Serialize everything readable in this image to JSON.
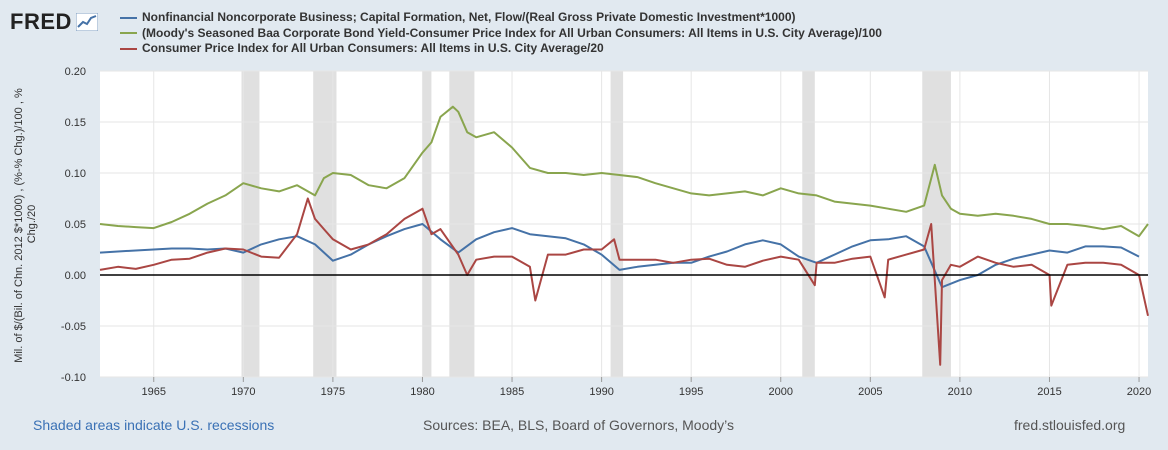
{
  "logo": {
    "text": "FRED"
  },
  "chart_data": {
    "type": "line",
    "title": "",
    "ylabel": "Mil. of $/(Bil. of Chn. 2012 $*1000) , (%-% Chg.)/100 , % Chg./20",
    "xlabel": "",
    "ylim": [
      -0.1,
      0.2
    ],
    "xlim": [
      1962.0,
      2020.5
    ],
    "y_ticks": [
      "0.20",
      "0.15",
      "0.10",
      "0.05",
      "0.00",
      "-0.05",
      "-0.10"
    ],
    "y_tick_values": [
      0.2,
      0.15,
      0.1,
      0.05,
      0.0,
      -0.05,
      -0.1
    ],
    "x_ticks": [
      "1965",
      "1970",
      "1975",
      "1980",
      "1985",
      "1990",
      "1995",
      "2000",
      "2005",
      "2010",
      "2015",
      "2020"
    ],
    "x_tick_values": [
      1965,
      1970,
      1975,
      1980,
      1985,
      1990,
      1995,
      2000,
      2005,
      2010,
      2015,
      2020
    ],
    "grid": true,
    "legend_position": "top",
    "recessions": [
      [
        1969.9,
        1970.9
      ],
      [
        1973.9,
        1975.2
      ],
      [
        1980.0,
        1980.5
      ],
      [
        1981.5,
        1982.9
      ],
      [
        1990.5,
        1991.2
      ],
      [
        2001.2,
        2001.9
      ],
      [
        2007.9,
        2009.5
      ]
    ],
    "series": [
      {
        "name": "Nonfinancial Noncorporate Business; Capital Formation, Net, Flow/(Real Gross Private Domestic Investment*1000)",
        "color": "#4572a7",
        "x": [
          1962.0,
          1963,
          1964,
          1965,
          1966,
          1967,
          1968,
          1969,
          1970,
          1971,
          1972,
          1973,
          1974,
          1975,
          1976,
          1977,
          1978,
          1979,
          1980,
          1981,
          1982,
          1983,
          1984,
          1985,
          1986,
          1987,
          1988,
          1989,
          1990,
          1991,
          1992,
          1993,
          1994,
          1995,
          1996,
          1997,
          1998,
          1999,
          2000,
          2001,
          2002,
          2003,
          2004,
          2005,
          2006,
          2007,
          2008,
          2009,
          2010,
          2011,
          2012,
          2013,
          2014,
          2015,
          2016,
          2017,
          2018,
          2019,
          2020
        ],
        "y": [
          0.022,
          0.023,
          0.024,
          0.025,
          0.026,
          0.026,
          0.025,
          0.026,
          0.022,
          0.03,
          0.035,
          0.038,
          0.03,
          0.014,
          0.02,
          0.03,
          0.038,
          0.045,
          0.05,
          0.035,
          0.022,
          0.035,
          0.042,
          0.046,
          0.04,
          0.038,
          0.036,
          0.03,
          0.02,
          0.005,
          0.008,
          0.01,
          0.012,
          0.012,
          0.018,
          0.023,
          0.03,
          0.034,
          0.03,
          0.018,
          0.012,
          0.02,
          0.028,
          0.034,
          0.035,
          0.038,
          0.028,
          -0.012,
          -0.005,
          0.0,
          0.01,
          0.016,
          0.02,
          0.024,
          0.022,
          0.028,
          0.028,
          0.027,
          0.018
        ]
      },
      {
        "name": "(Moody's Seasoned Baa Corporate Bond Yield-Consumer Price Index for All Urban Consumers: All Items in U.S. City Average)/100",
        "color": "#89a54e",
        "x": [
          1962.0,
          1963,
          1964,
          1965,
          1966,
          1967,
          1968,
          1969,
          1970,
          1971,
          1972,
          1973,
          1974,
          1974.5,
          1975,
          1976,
          1977,
          1978,
          1979,
          1980,
          1980.5,
          1981,
          1981.7,
          1982,
          1982.5,
          1983,
          1984,
          1985,
          1986,
          1987,
          1988,
          1989,
          1990,
          1991,
          1992,
          1993,
          1994,
          1995,
          1996,
          1997,
          1998,
          1999,
          2000,
          2001,
          2002,
          2003,
          2004,
          2005,
          2006,
          2007,
          2008,
          2008.6,
          2009,
          2009.5,
          2010,
          2011,
          2012,
          2013,
          2014,
          2015,
          2016,
          2017,
          2018,
          2019,
          2020,
          2020.5
        ],
        "y": [
          0.05,
          0.048,
          0.047,
          0.046,
          0.052,
          0.06,
          0.07,
          0.078,
          0.09,
          0.085,
          0.082,
          0.088,
          0.078,
          0.095,
          0.1,
          0.098,
          0.088,
          0.085,
          0.095,
          0.12,
          0.13,
          0.155,
          0.165,
          0.16,
          0.14,
          0.135,
          0.14,
          0.125,
          0.105,
          0.1,
          0.1,
          0.098,
          0.1,
          0.098,
          0.096,
          0.09,
          0.085,
          0.08,
          0.078,
          0.08,
          0.082,
          0.078,
          0.085,
          0.08,
          0.078,
          0.072,
          0.07,
          0.068,
          0.065,
          0.062,
          0.068,
          0.108,
          0.078,
          0.065,
          0.06,
          0.058,
          0.06,
          0.058,
          0.055,
          0.05,
          0.05,
          0.048,
          0.045,
          0.048,
          0.038,
          0.05
        ]
      },
      {
        "name": "Consumer Price Index for All Urban Consumers: All Items in U.S. City Average/20",
        "color": "#aa4643",
        "x": [
          1962.0,
          1963,
          1964,
          1965,
          1966,
          1967,
          1968,
          1969,
          1970,
          1971,
          1972,
          1973,
          1973.6,
          1974,
          1974.5,
          1975,
          1976,
          1977,
          1978,
          1979,
          1980,
          1980.5,
          1981,
          1982,
          1982.5,
          1983,
          1984,
          1985,
          1986,
          1986.3,
          1987,
          1988,
          1989,
          1990,
          1990.7,
          1991,
          1992,
          1993,
          1994,
          1995,
          1996,
          1997,
          1998,
          1999,
          2000,
          2001,
          2001.9,
          2002,
          2003,
          2004,
          2005,
          2005.8,
          2006,
          2007,
          2008,
          2008.4,
          2008.9,
          2009,
          2009.5,
          2010,
          2011,
          2012,
          2013,
          2014,
          2015,
          2015.1,
          2016,
          2017,
          2018,
          2019,
          2020,
          2020.5
        ],
        "y": [
          0.005,
          0.008,
          0.006,
          0.01,
          0.015,
          0.016,
          0.022,
          0.026,
          0.025,
          0.018,
          0.017,
          0.04,
          0.075,
          0.055,
          0.045,
          0.035,
          0.025,
          0.03,
          0.04,
          0.055,
          0.065,
          0.04,
          0.045,
          0.02,
          0.0,
          0.015,
          0.018,
          0.018,
          0.008,
          -0.025,
          0.02,
          0.02,
          0.025,
          0.025,
          0.035,
          0.015,
          0.015,
          0.015,
          0.012,
          0.015,
          0.016,
          0.01,
          0.008,
          0.014,
          0.018,
          0.015,
          -0.01,
          0.012,
          0.012,
          0.016,
          0.018,
          -0.022,
          0.015,
          0.02,
          0.025,
          0.05,
          -0.088,
          -0.005,
          0.01,
          0.008,
          0.018,
          0.012,
          0.008,
          0.01,
          0.0,
          -0.03,
          0.01,
          0.012,
          0.012,
          0.01,
          0.0,
          -0.04
        ]
      }
    ]
  },
  "footer": {
    "left": "Shaded areas indicate U.S. recessions",
    "middle": "Sources: BEA, BLS, Board of Governors, Moody’s",
    "right": "fred.stlouisfed.org"
  }
}
